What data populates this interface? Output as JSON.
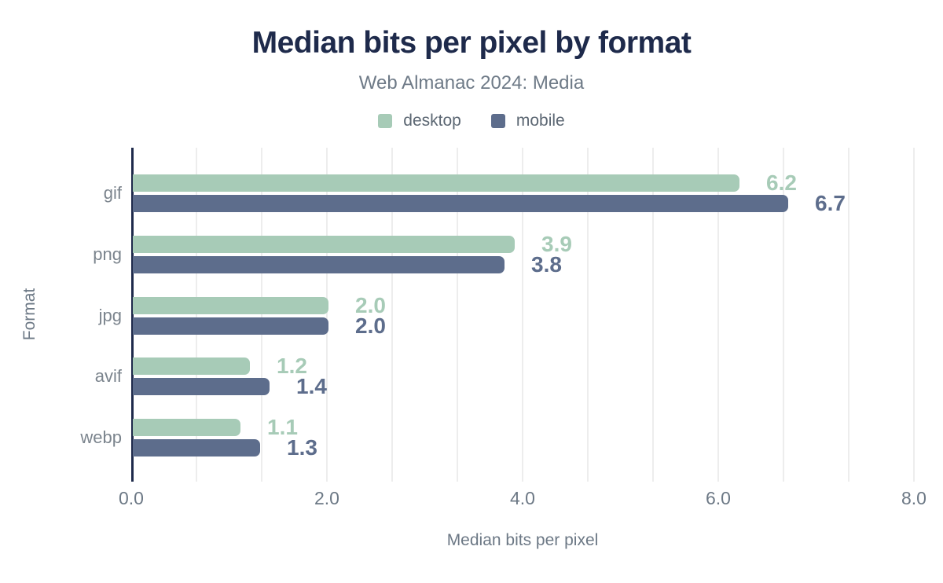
{
  "chart_data": {
    "type": "bar",
    "orientation": "horizontal",
    "title": "Median bits per pixel by format",
    "subtitle": "Web Almanac 2024: Media",
    "xlabel": "Median bits per pixel",
    "ylabel": "Format",
    "xlim": [
      0,
      8
    ],
    "x_tick_labels": [
      "0.0",
      "2.0",
      "4.0",
      "6.0",
      "8.0"
    ],
    "grid": "vertical light gridlines every 2/3 unit, no horizontal gridlines",
    "legend_position": "top center",
    "categories": [
      "gif",
      "png",
      "jpg",
      "avif",
      "webp"
    ],
    "series": [
      {
        "name": "desktop",
        "color": "#a7cbb7",
        "values": [
          6.2,
          3.9,
          2.0,
          1.2,
          1.1
        ]
      },
      {
        "name": "mobile",
        "color": "#5d6d8c",
        "values": [
          6.7,
          3.8,
          2.0,
          1.4,
          1.3
        ]
      }
    ]
  },
  "colors": {
    "background": "#ffffff",
    "title": "#1e2a4b",
    "subtitle": "#6e7a87",
    "axis_line": "#1e2a4b",
    "gridline": "#ededed",
    "category_label": "#7b848d",
    "tick_label": "#6c7885",
    "axis_title": "#6c7885",
    "legend_label": "#5c6773"
  }
}
